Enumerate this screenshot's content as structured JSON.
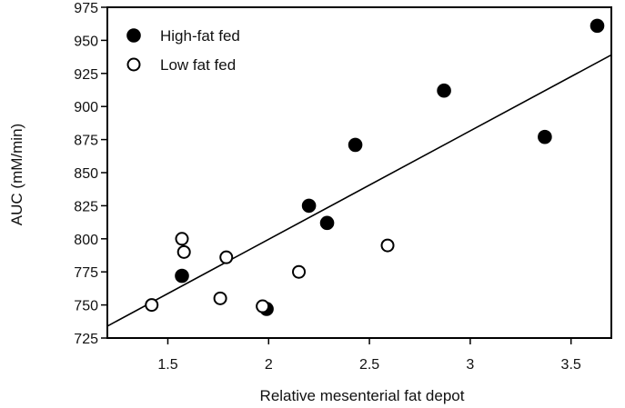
{
  "chart_data": {
    "type": "scatter",
    "xlabel": "Relative mesenterial fat depot",
    "ylabel": "AUC (mM/min)",
    "xlim": [
      1.2,
      3.7
    ],
    "ylim": [
      725,
      975
    ],
    "xticks": [
      1.5,
      2,
      2.5,
      3,
      3.5
    ],
    "xtick_labels": [
      "1.5",
      "2",
      "2.5",
      "3",
      "3.5"
    ],
    "yticks": [
      725,
      750,
      775,
      800,
      825,
      850,
      875,
      900,
      925,
      950,
      975
    ],
    "ytick_labels": [
      "725",
      "750",
      "775",
      "800",
      "825",
      "850",
      "875",
      "900",
      "925",
      "950",
      "975"
    ],
    "grid": false,
    "legend_position": "top-left",
    "series": [
      {
        "name": "High-fat fed",
        "marker": "filled-circle",
        "color": "#000000",
        "points": [
          {
            "x": 1.57,
            "y": 772
          },
          {
            "x": 1.99,
            "y": 747
          },
          {
            "x": 2.2,
            "y": 825
          },
          {
            "x": 2.29,
            "y": 812
          },
          {
            "x": 2.43,
            "y": 871
          },
          {
            "x": 2.87,
            "y": 912
          },
          {
            "x": 3.37,
            "y": 877
          },
          {
            "x": 3.63,
            "y": 961
          }
        ]
      },
      {
        "name": "Low fat fed",
        "marker": "open-circle",
        "color": "#000000",
        "points": [
          {
            "x": 1.42,
            "y": 750
          },
          {
            "x": 1.57,
            "y": 800
          },
          {
            "x": 1.58,
            "y": 790
          },
          {
            "x": 1.76,
            "y": 755
          },
          {
            "x": 1.79,
            "y": 786
          },
          {
            "x": 1.97,
            "y": 749
          },
          {
            "x": 2.15,
            "y": 775
          },
          {
            "x": 2.59,
            "y": 795
          }
        ]
      }
    ],
    "regression_line": {
      "x": [
        1.2,
        3.7
      ],
      "y": [
        734,
        939
      ]
    }
  }
}
